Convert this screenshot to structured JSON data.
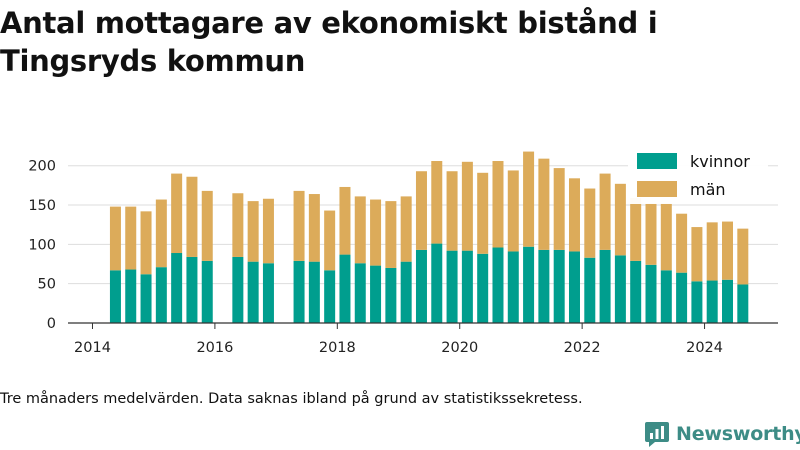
{
  "title": "Antal mottagare av ekonomiskt bistånd i Tingsryds kommun",
  "footnote": "Tre månaders medelvärden. Data saknas ibland på grund av statistikssekretess.",
  "brand": {
    "name": "Newsworthy",
    "color": "#3d8c86",
    "icon": "newsworthy-logo-icon"
  },
  "chart_data": {
    "type": "bar",
    "stacked": true,
    "title": "Antal mottagare av ekonomiskt bistånd i Tingsryds kommun",
    "xlabel": "",
    "ylabel": "",
    "ylim": [
      0,
      220
    ],
    "xlim": [
      2013.6,
      2025.2
    ],
    "yticks": [
      0,
      50,
      100,
      150,
      200
    ],
    "xticks": [
      2014,
      2016,
      2018,
      2020,
      2022,
      2024
    ],
    "grid": true,
    "legend_position": "top-right",
    "x": [
      2014.375,
      2014.625,
      2014.875,
      2015.125,
      2015.375,
      2015.625,
      2015.875,
      2016.375,
      2016.625,
      2016.875,
      2017.375,
      2017.625,
      2017.875,
      2018.125,
      2018.375,
      2018.625,
      2018.875,
      2019.125,
      2019.375,
      2019.625,
      2019.875,
      2020.125,
      2020.375,
      2020.625,
      2020.875,
      2021.125,
      2021.375,
      2021.625,
      2021.875,
      2022.125,
      2022.375,
      2022.625,
      2022.875,
      2023.125,
      2023.375,
      2023.625,
      2023.875,
      2024.125,
      2024.375,
      2024.625
    ],
    "series": [
      {
        "name": "kvinnor",
        "color": "#009e8e",
        "values": [
          67,
          68,
          62,
          71,
          89,
          84,
          79,
          84,
          78,
          76,
          79,
          78,
          67,
          87,
          76,
          73,
          70,
          78,
          93,
          101,
          92,
          92,
          88,
          96,
          91,
          97,
          93,
          93,
          91,
          83,
          93,
          86,
          79,
          74,
          67,
          64,
          53,
          54,
          55,
          49
        ]
      },
      {
        "name": "män",
        "color": "#dcab5a",
        "values": [
          81,
          80,
          80,
          86,
          101,
          102,
          89,
          81,
          77,
          82,
          89,
          86,
          76,
          86,
          85,
          84,
          85,
          83,
          100,
          105,
          101,
          113,
          103,
          110,
          103,
          121,
          116,
          104,
          93,
          88,
          97,
          91,
          80,
          78,
          85,
          75,
          69,
          74,
          74,
          71
        ]
      }
    ]
  }
}
